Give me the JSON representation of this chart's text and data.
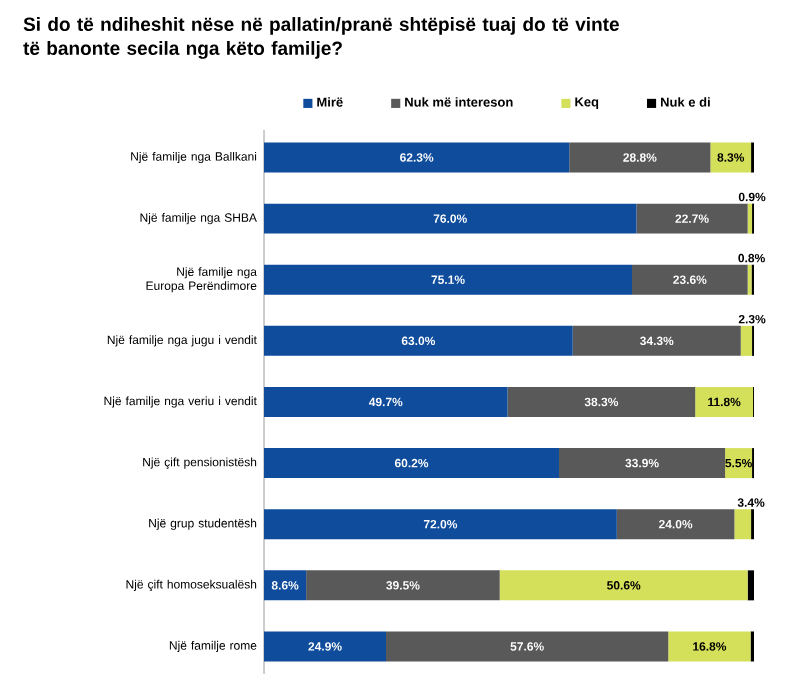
{
  "chart_data": {
    "type": "bar",
    "orientation": "horizontal",
    "stacked": true,
    "legend": "top",
    "title": "Si do të ndiheshit nëse në pallatin/pranë shtëpisë tuaj do të vinte të banonte secila nga këto familje?",
    "categories": [
      "Një familje nga Ballkani",
      "Një familje nga SHBA",
      "Një familje nga Europa Perëndimore",
      "Një familje nga jugu i vendit",
      "Një familje nga veriu i vendit",
      "Një çift pensionistësh",
      "Një grup studentësh",
      "Një çift homoseksualësh",
      "Një familje rome"
    ],
    "series": [
      {
        "name": "Mirë",
        "color": "#0f4c9c",
        "values": [
          62.3,
          76.0,
          75.1,
          63.0,
          49.7,
          60.2,
          72.0,
          8.6,
          24.9
        ],
        "value_labels": [
          "62.3%",
          "76.0%",
          "75.1%",
          "63.0%",
          "49.7%",
          "60.2%",
          "72.0%",
          "8.6%",
          "24.9%"
        ]
      },
      {
        "name": "Nuk më intereson",
        "color": "#595959",
        "values": [
          28.8,
          22.7,
          23.6,
          34.3,
          38.3,
          33.9,
          24.0,
          39.5,
          57.6
        ],
        "value_labels": [
          "28.8%",
          "22.7%",
          "23.6%",
          "34.3%",
          "38.3%",
          "33.9%",
          "24.0%",
          "39.5%",
          "57.6%"
        ]
      },
      {
        "name": "Keq",
        "color": "#d4e05a",
        "values": [
          8.3,
          0.9,
          0.8,
          2.3,
          11.8,
          5.5,
          3.4,
          50.6,
          16.8
        ],
        "value_labels": [
          "8.3%",
          "0.9%",
          "0.8%",
          "2.3%",
          "11.8%",
          "5.5%",
          "3.4%",
          "50.6%",
          "16.8%"
        ]
      },
      {
        "name": "Nuk e di",
        "color": "#000000",
        "values": [
          0.6,
          0.4,
          0.5,
          0.4,
          0.2,
          0.4,
          0.6,
          1.3,
          0.7
        ],
        "value_labels": [
          null,
          null,
          null,
          null,
          null,
          null,
          null,
          null,
          null
        ]
      }
    ]
  }
}
